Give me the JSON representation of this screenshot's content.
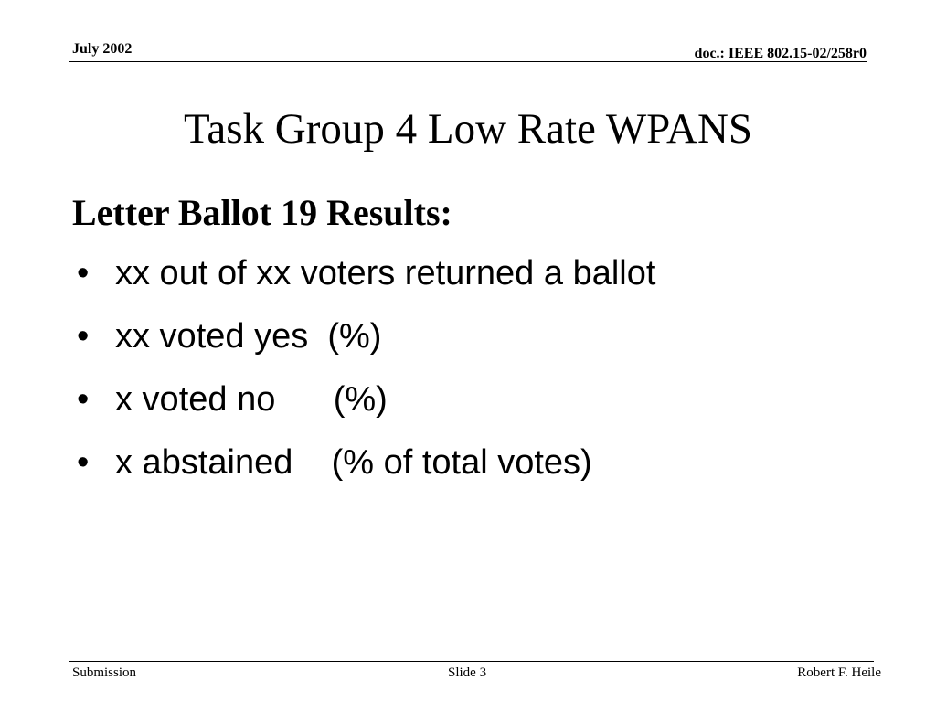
{
  "header": {
    "date": "July 2002",
    "doc_id": "doc.: IEEE 802.15-02/258r0"
  },
  "slide": {
    "title": "Task Group 4 Low Rate WPANS",
    "subheading": "Letter Ballot 19 Results:",
    "bullet_glyph": "•",
    "bullets": [
      "xx out of xx voters returned a ballot",
      "xx voted yes  (%)",
      "x voted no      (%)",
      "x abstained    (% of total votes)"
    ]
  },
  "footer": {
    "left": "Submission",
    "center": "Slide 3",
    "right": "Robert F. Heile"
  }
}
